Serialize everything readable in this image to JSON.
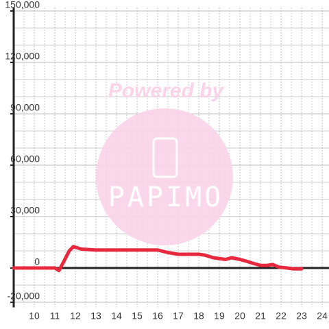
{
  "chart_data": {
    "type": "line",
    "watermark": [
      "Powered by",
      "PAPIMO"
    ],
    "x": [
      9,
      10,
      11,
      11.2,
      11.4,
      11.7,
      11.9,
      12.3,
      13,
      14,
      15,
      16,
      16.5,
      17,
      18,
      18.3,
      18.7,
      19,
      19.3,
      19.6,
      20,
      20.3,
      20.7,
      21,
      21.3,
      21.6,
      21.9,
      22.3,
      22.6,
      23
    ],
    "series": [
      {
        "color": "#e8283c",
        "values": [
          0,
          0,
          0,
          -1500,
          3000,
          10000,
          12500,
          11000,
          10500,
          10500,
          10500,
          10500,
          9000,
          8000,
          8000,
          7500,
          6000,
          5500,
          5000,
          6000,
          5000,
          4000,
          2500,
          1500,
          1500,
          2000,
          500,
          0,
          -500,
          -500
        ]
      }
    ],
    "xlim": [
      9,
      24.33
    ],
    "xticks": [
      10,
      11,
      12,
      13,
      14,
      15,
      16,
      17,
      18,
      19,
      20,
      21,
      22,
      23,
      24
    ],
    "x_minor_ticks": [
      9.5,
      10.5,
      11.5,
      12.5,
      13.5,
      14.5,
      15.5,
      16.5,
      17.5,
      18.5,
      19.5,
      20.5,
      21.5,
      22.5,
      23.5
    ],
    "ylim": [
      -23000,
      152000
    ],
    "yticks": [
      {
        "value": -20000,
        "label": "-20,000"
      },
      0,
      {
        "value": 30000,
        "label": "30,000"
      },
      {
        "value": 60000,
        "label": "60,000"
      },
      {
        "value": 90000,
        "label": "90,000"
      },
      {
        "value": 120000,
        "label": "120,000"
      },
      {
        "value": 150000,
        "label": "150,000"
      }
    ],
    "y_minor_ticks": [
      -10000,
      10000,
      20000,
      40000,
      50000,
      70000,
      80000,
      100000,
      110000,
      130000,
      140000
    ],
    "grid": true
  }
}
